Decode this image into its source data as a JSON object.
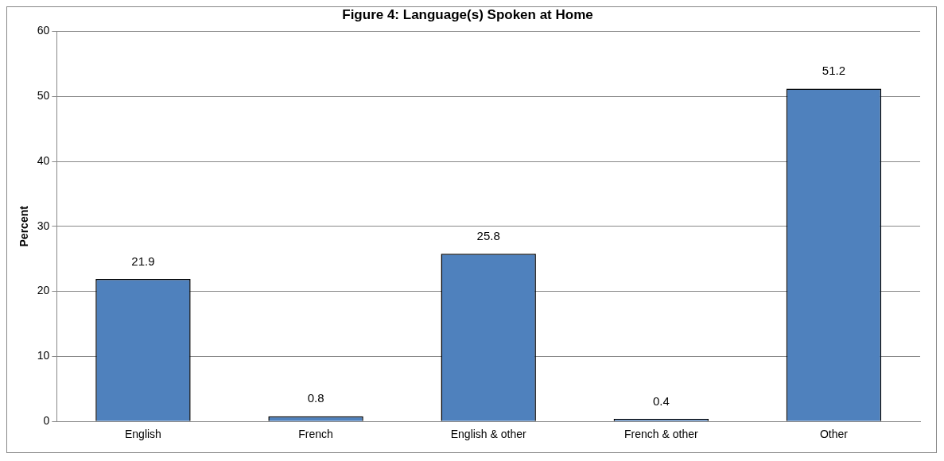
{
  "chart_data": {
    "type": "bar",
    "title": "Figure 4: Language(s) Spoken at Home",
    "ylabel": "Percent",
    "categories": [
      "English",
      "French",
      "English & other",
      "French & other",
      "Other"
    ],
    "values": [
      21.9,
      0.8,
      25.8,
      0.4,
      51.2
    ],
    "color": "#4f81bd",
    "ylim": [
      0,
      60
    ],
    "yticks": [
      0,
      10,
      20,
      30,
      40,
      50,
      60
    ],
    "grid": "y",
    "data_labels": true
  }
}
